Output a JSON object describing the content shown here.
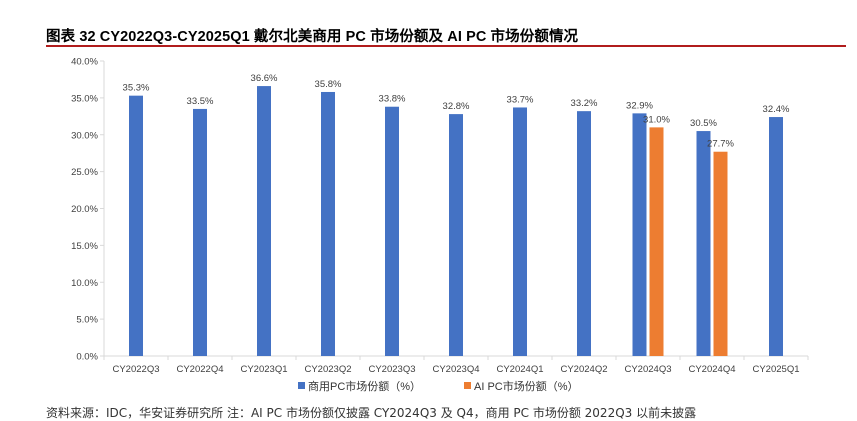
{
  "title": "图表 32 CY2022Q3-CY2025Q1 戴尔北美商用 PC 市场份额及 AI PC 市场份额情况",
  "source": "资料来源：IDC，华安证券研究所 注：AI PC 市场份额仅披露 CY2024Q3 及 Q4，商用 PC 市场份额 2022Q3 以前未披露",
  "colors": {
    "commercial": "#4472c4",
    "ai": "#ed7d31",
    "title_rule": "#b11c1c",
    "axis": "#d9d9d9"
  },
  "chart_data": {
    "type": "bar",
    "categories": [
      "CY2022Q3",
      "CY2022Q4",
      "CY2023Q1",
      "CY2023Q2",
      "CY2023Q3",
      "CY2023Q4",
      "CY2024Q1",
      "CY2024Q2",
      "CY2024Q3",
      "CY2024Q4",
      "CY2025Q1"
    ],
    "series": [
      {
        "name": "商用PC市场份额（%）",
        "values": [
          35.3,
          33.5,
          36.6,
          35.8,
          33.8,
          32.8,
          33.7,
          33.2,
          32.9,
          30.5,
          32.4
        ],
        "labels": [
          "35.3%",
          "33.5%",
          "36.6%",
          "35.8%",
          "33.8%",
          "32.8%",
          "33.7%",
          "33.2%",
          "32.9%",
          "30.5%",
          "32.4%"
        ]
      },
      {
        "name": "AI PC市场份额（%）",
        "values": [
          null,
          null,
          null,
          null,
          null,
          null,
          null,
          null,
          31.0,
          27.7,
          null
        ],
        "labels": [
          null,
          null,
          null,
          null,
          null,
          null,
          null,
          null,
          "31.0%",
          "27.7%",
          null
        ]
      }
    ],
    "yticks": [
      "0.0%",
      "5.0%",
      "10.0%",
      "15.0%",
      "20.0%",
      "25.0%",
      "30.0%",
      "35.0%",
      "40.0%"
    ],
    "ylim": [
      0,
      40
    ],
    "grid": false,
    "legend": "bottom"
  }
}
